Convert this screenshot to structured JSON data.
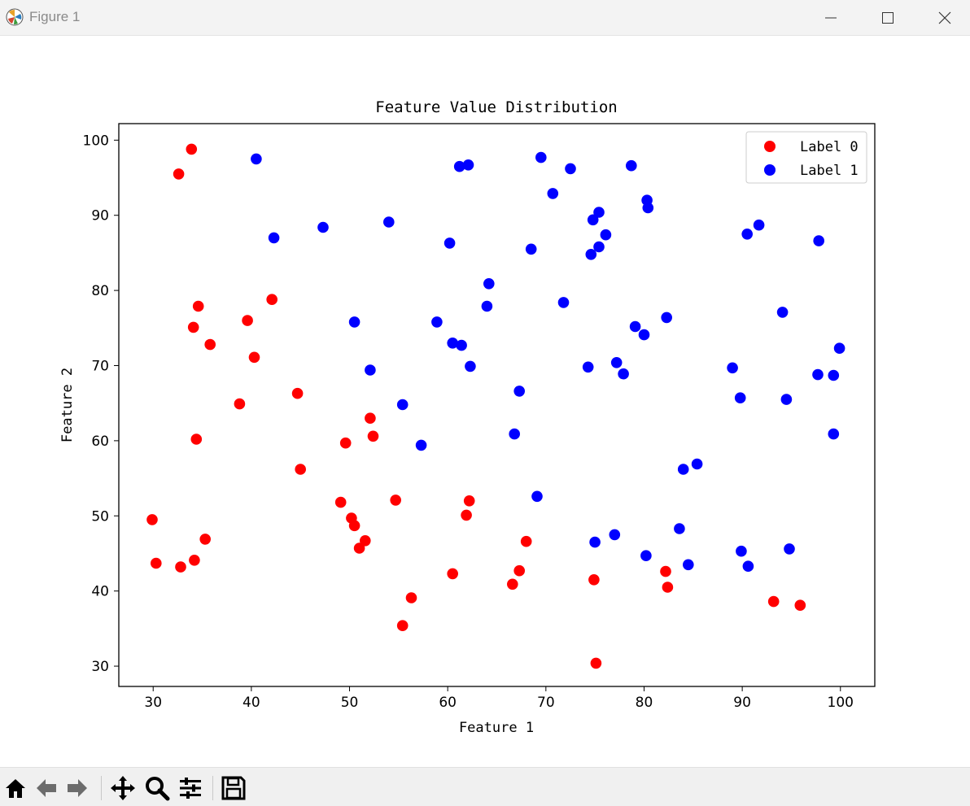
{
  "window": {
    "title": "Figure 1",
    "controls": [
      "minimize",
      "maximize",
      "close"
    ]
  },
  "toolbar": {
    "buttons": [
      {
        "name": "home",
        "icon": "home-icon"
      },
      {
        "name": "back",
        "icon": "back-arrow-icon"
      },
      {
        "name": "forward",
        "icon": "forward-arrow-icon"
      },
      {
        "name": "pan",
        "icon": "move-icon"
      },
      {
        "name": "zoom",
        "icon": "magnifier-icon"
      },
      {
        "name": "configure",
        "icon": "sliders-icon"
      },
      {
        "name": "save",
        "icon": "floppy-disk-icon"
      }
    ]
  },
  "chart_data": {
    "type": "scatter",
    "title": "Feature Value Distribution",
    "xlabel": "Feature 1",
    "ylabel": "Feature 2",
    "xlim": [
      26.5,
      103.5
    ],
    "ylim": [
      27.3,
      102.2
    ],
    "xticks": [
      30,
      40,
      50,
      60,
      70,
      80,
      90,
      100
    ],
    "yticks": [
      30,
      40,
      50,
      60,
      70,
      80,
      90,
      100
    ],
    "grid": false,
    "legend_position": "top-right",
    "series": [
      {
        "name": "Label 0",
        "color": "#ff0000",
        "points": [
          [
            33.9,
            98.8
          ],
          [
            32.6,
            95.5
          ],
          [
            42.1,
            78.8
          ],
          [
            39.6,
            76.0
          ],
          [
            34.6,
            77.9
          ],
          [
            34.1,
            75.1
          ],
          [
            35.8,
            72.8
          ],
          [
            40.3,
            71.1
          ],
          [
            38.8,
            64.9
          ],
          [
            44.7,
            66.3
          ],
          [
            52.1,
            63.0
          ],
          [
            52.4,
            60.6
          ],
          [
            49.6,
            59.7
          ],
          [
            34.4,
            60.2
          ],
          [
            45.0,
            56.2
          ],
          [
            49.1,
            51.8
          ],
          [
            54.7,
            52.1
          ],
          [
            62.2,
            52.0
          ],
          [
            61.9,
            50.1
          ],
          [
            50.2,
            49.7
          ],
          [
            50.5,
            48.7
          ],
          [
            51.6,
            46.7
          ],
          [
            51.0,
            45.7
          ],
          [
            29.9,
            49.5
          ],
          [
            35.3,
            46.9
          ],
          [
            34.2,
            44.1
          ],
          [
            32.8,
            43.2
          ],
          [
            30.3,
            43.7
          ],
          [
            68.0,
            46.6
          ],
          [
            67.3,
            42.7
          ],
          [
            60.5,
            42.3
          ],
          [
            66.6,
            40.9
          ],
          [
            74.9,
            41.5
          ],
          [
            82.2,
            42.6
          ],
          [
            82.4,
            40.5
          ],
          [
            56.3,
            39.1
          ],
          [
            55.4,
            35.4
          ],
          [
            93.2,
            38.6
          ],
          [
            95.9,
            38.1
          ],
          [
            75.1,
            30.4
          ]
        ]
      },
      {
        "name": "Label 1",
        "color": "#0000ff",
        "points": [
          [
            40.5,
            97.5
          ],
          [
            61.2,
            96.5
          ],
          [
            62.1,
            96.7
          ],
          [
            69.5,
            97.7
          ],
          [
            72.5,
            96.2
          ],
          [
            78.7,
            96.6
          ],
          [
            70.7,
            92.9
          ],
          [
            80.3,
            92.0
          ],
          [
            80.4,
            91.0
          ],
          [
            75.4,
            90.4
          ],
          [
            74.8,
            89.4
          ],
          [
            54.0,
            89.1
          ],
          [
            47.3,
            88.4
          ],
          [
            42.3,
            87.0
          ],
          [
            60.2,
            86.3
          ],
          [
            68.5,
            85.5
          ],
          [
            76.1,
            87.4
          ],
          [
            75.4,
            85.8
          ],
          [
            74.6,
            84.8
          ],
          [
            90.5,
            87.5
          ],
          [
            91.7,
            88.7
          ],
          [
            97.8,
            86.6
          ],
          [
            64.2,
            80.9
          ],
          [
            64.0,
            77.9
          ],
          [
            71.8,
            78.4
          ],
          [
            82.3,
            76.4
          ],
          [
            94.1,
            77.1
          ],
          [
            50.5,
            75.8
          ],
          [
            58.9,
            75.8
          ],
          [
            79.1,
            75.2
          ],
          [
            80.0,
            74.1
          ],
          [
            60.5,
            73.0
          ],
          [
            61.4,
            72.7
          ],
          [
            62.3,
            69.9
          ],
          [
            52.1,
            69.4
          ],
          [
            74.3,
            69.8
          ],
          [
            77.2,
            70.4
          ],
          [
            77.9,
            68.9
          ],
          [
            89.0,
            69.7
          ],
          [
            97.7,
            68.8
          ],
          [
            99.3,
            68.7
          ],
          [
            99.9,
            72.3
          ],
          [
            67.3,
            66.6
          ],
          [
            55.4,
            64.8
          ],
          [
            89.8,
            65.7
          ],
          [
            94.5,
            65.5
          ],
          [
            66.8,
            60.9
          ],
          [
            57.3,
            59.4
          ],
          [
            99.3,
            60.9
          ],
          [
            85.4,
            56.9
          ],
          [
            84.0,
            56.2
          ],
          [
            69.1,
            52.6
          ],
          [
            83.6,
            48.3
          ],
          [
            77.0,
            47.5
          ],
          [
            75.0,
            46.5
          ],
          [
            89.9,
            45.3
          ],
          [
            94.8,
            45.6
          ],
          [
            80.2,
            44.7
          ],
          [
            84.5,
            43.5
          ],
          [
            90.6,
            43.3
          ]
        ]
      }
    ]
  }
}
